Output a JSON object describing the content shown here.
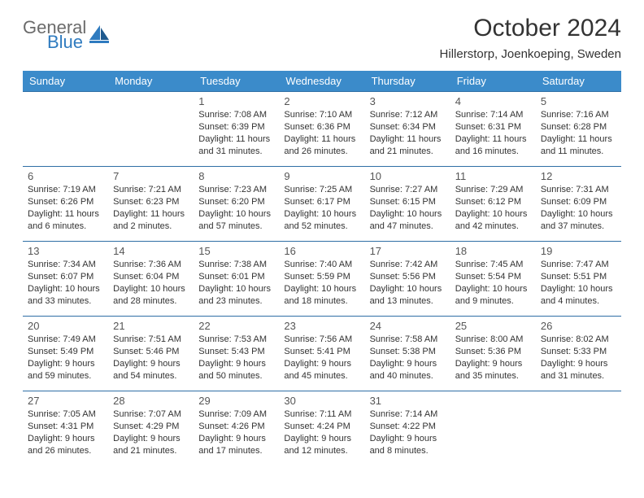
{
  "logo": {
    "general": "General",
    "blue": "Blue"
  },
  "title": "October 2024",
  "location": "Hillerstorp, Joenkoeping, Sweden",
  "colors": {
    "header_bg": "#3b8bca",
    "header_text": "#ffffff",
    "border": "#2f6fa5",
    "logo_gray": "#6b6b6b",
    "logo_blue": "#2f7bbf"
  },
  "weekdays": [
    "Sunday",
    "Monday",
    "Tuesday",
    "Wednesday",
    "Thursday",
    "Friday",
    "Saturday"
  ],
  "weeks": [
    [
      null,
      null,
      {
        "n": "1",
        "sr": "7:08 AM",
        "ss": "6:39 PM",
        "dl": "11 hours and 31 minutes."
      },
      {
        "n": "2",
        "sr": "7:10 AM",
        "ss": "6:36 PM",
        "dl": "11 hours and 26 minutes."
      },
      {
        "n": "3",
        "sr": "7:12 AM",
        "ss": "6:34 PM",
        "dl": "11 hours and 21 minutes."
      },
      {
        "n": "4",
        "sr": "7:14 AM",
        "ss": "6:31 PM",
        "dl": "11 hours and 16 minutes."
      },
      {
        "n": "5",
        "sr": "7:16 AM",
        "ss": "6:28 PM",
        "dl": "11 hours and 11 minutes."
      }
    ],
    [
      {
        "n": "6",
        "sr": "7:19 AM",
        "ss": "6:26 PM",
        "dl": "11 hours and 6 minutes."
      },
      {
        "n": "7",
        "sr": "7:21 AM",
        "ss": "6:23 PM",
        "dl": "11 hours and 2 minutes."
      },
      {
        "n": "8",
        "sr": "7:23 AM",
        "ss": "6:20 PM",
        "dl": "10 hours and 57 minutes."
      },
      {
        "n": "9",
        "sr": "7:25 AM",
        "ss": "6:17 PM",
        "dl": "10 hours and 52 minutes."
      },
      {
        "n": "10",
        "sr": "7:27 AM",
        "ss": "6:15 PM",
        "dl": "10 hours and 47 minutes."
      },
      {
        "n": "11",
        "sr": "7:29 AM",
        "ss": "6:12 PM",
        "dl": "10 hours and 42 minutes."
      },
      {
        "n": "12",
        "sr": "7:31 AM",
        "ss": "6:09 PM",
        "dl": "10 hours and 37 minutes."
      }
    ],
    [
      {
        "n": "13",
        "sr": "7:34 AM",
        "ss": "6:07 PM",
        "dl": "10 hours and 33 minutes."
      },
      {
        "n": "14",
        "sr": "7:36 AM",
        "ss": "6:04 PM",
        "dl": "10 hours and 28 minutes."
      },
      {
        "n": "15",
        "sr": "7:38 AM",
        "ss": "6:01 PM",
        "dl": "10 hours and 23 minutes."
      },
      {
        "n": "16",
        "sr": "7:40 AM",
        "ss": "5:59 PM",
        "dl": "10 hours and 18 minutes."
      },
      {
        "n": "17",
        "sr": "7:42 AM",
        "ss": "5:56 PM",
        "dl": "10 hours and 13 minutes."
      },
      {
        "n": "18",
        "sr": "7:45 AM",
        "ss": "5:54 PM",
        "dl": "10 hours and 9 minutes."
      },
      {
        "n": "19",
        "sr": "7:47 AM",
        "ss": "5:51 PM",
        "dl": "10 hours and 4 minutes."
      }
    ],
    [
      {
        "n": "20",
        "sr": "7:49 AM",
        "ss": "5:49 PM",
        "dl": "9 hours and 59 minutes."
      },
      {
        "n": "21",
        "sr": "7:51 AM",
        "ss": "5:46 PM",
        "dl": "9 hours and 54 minutes."
      },
      {
        "n": "22",
        "sr": "7:53 AM",
        "ss": "5:43 PM",
        "dl": "9 hours and 50 minutes."
      },
      {
        "n": "23",
        "sr": "7:56 AM",
        "ss": "5:41 PM",
        "dl": "9 hours and 45 minutes."
      },
      {
        "n": "24",
        "sr": "7:58 AM",
        "ss": "5:38 PM",
        "dl": "9 hours and 40 minutes."
      },
      {
        "n": "25",
        "sr": "8:00 AM",
        "ss": "5:36 PM",
        "dl": "9 hours and 35 minutes."
      },
      {
        "n": "26",
        "sr": "8:02 AM",
        "ss": "5:33 PM",
        "dl": "9 hours and 31 minutes."
      }
    ],
    [
      {
        "n": "27",
        "sr": "7:05 AM",
        "ss": "4:31 PM",
        "dl": "9 hours and 26 minutes."
      },
      {
        "n": "28",
        "sr": "7:07 AM",
        "ss": "4:29 PM",
        "dl": "9 hours and 21 minutes."
      },
      {
        "n": "29",
        "sr": "7:09 AM",
        "ss": "4:26 PM",
        "dl": "9 hours and 17 minutes."
      },
      {
        "n": "30",
        "sr": "7:11 AM",
        "ss": "4:24 PM",
        "dl": "9 hours and 12 minutes."
      },
      {
        "n": "31",
        "sr": "7:14 AM",
        "ss": "4:22 PM",
        "dl": "9 hours and 8 minutes."
      },
      null,
      null
    ]
  ],
  "labels": {
    "sunrise": "Sunrise: ",
    "sunset": "Sunset: ",
    "daylight": "Daylight: "
  }
}
